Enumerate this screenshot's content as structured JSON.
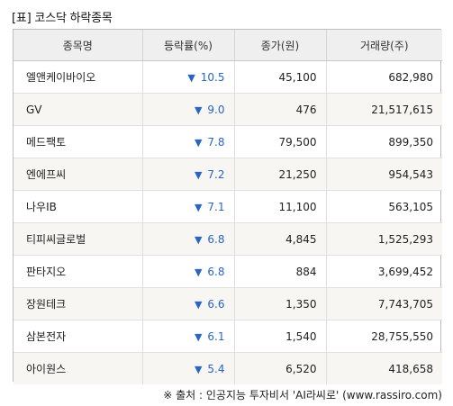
{
  "title": "[표] 코스닥 하락종목",
  "columns": [
    "종목명",
    "등락률(%)",
    "종가(원)",
    "거래량(주)"
  ],
  "down_icon": "▼",
  "rows": [
    {
      "name": "엘앤케이바이오",
      "change": "10.5",
      "price": "45,100",
      "volume": "682,980"
    },
    {
      "name": "GV",
      "change": "9.0",
      "price": "476",
      "volume": "21,517,615"
    },
    {
      "name": "메드팩토",
      "change": "7.8",
      "price": "79,500",
      "volume": "899,350"
    },
    {
      "name": "엔에프씨",
      "change": "7.2",
      "price": "21,250",
      "volume": "954,543"
    },
    {
      "name": "나우IB",
      "change": "7.1",
      "price": "11,100",
      "volume": "563,105"
    },
    {
      "name": "티피씨글로벌",
      "change": "6.8",
      "price": "4,845",
      "volume": "1,525,293"
    },
    {
      "name": "판타지오",
      "change": "6.8",
      "price": "884",
      "volume": "3,699,452"
    },
    {
      "name": "장원테크",
      "change": "6.6",
      "price": "1,350",
      "volume": "7,743,705"
    },
    {
      "name": "삼본전자",
      "change": "6.1",
      "price": "1,540",
      "volume": "28,755,550"
    },
    {
      "name": "아이원스",
      "change": "5.4",
      "price": "6,520",
      "volume": "418,658"
    }
  ],
  "footer": "※ 출처 : 인공지능 투자비서 'AI라씨로' (www.rassiro.com)"
}
